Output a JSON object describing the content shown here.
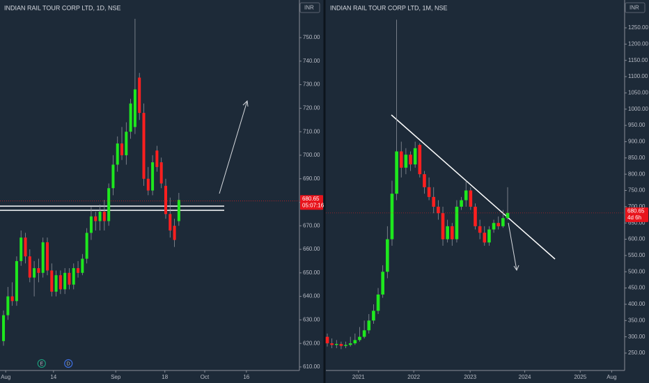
{
  "chart_data": [
    {
      "type": "candlestick",
      "title": "INDIAN RAIL TOUR CORP LTD, 1D, NSE",
      "currency": "INR",
      "last_price": 680.65,
      "countdown": "05:07:16",
      "up_color": "#1ee81e",
      "down_color": "#ff1f1f",
      "x": [
        0,
        1,
        2,
        3,
        4,
        5,
        6,
        7,
        8,
        9,
        10,
        11,
        12,
        13,
        14,
        15,
        16,
        17,
        18,
        19,
        20,
        21,
        22,
        23,
        24,
        25,
        26,
        27,
        28,
        29,
        30,
        31,
        32,
        33,
        34,
        35,
        36,
        37,
        38,
        39,
        40
      ],
      "open": [
        621,
        632,
        640,
        638,
        655,
        665,
        657,
        648,
        652,
        650,
        663,
        651,
        642,
        649,
        643,
        650,
        645,
        652,
        650,
        656,
        667,
        674,
        672,
        676,
        672,
        686,
        696,
        705,
        700,
        710,
        712,
        733,
        718,
        690,
        685,
        702,
        697,
        687,
        675,
        670,
        672
      ],
      "high": [
        634,
        644,
        646,
        657,
        668,
        667,
        660,
        655,
        656,
        665,
        665,
        654,
        651,
        651,
        652,
        652,
        654,
        655,
        658,
        669,
        678,
        676,
        679,
        681,
        688,
        700,
        708,
        712,
        714,
        724,
        758,
        735,
        722,
        695,
        700,
        704,
        699,
        690,
        682,
        673,
        684
      ],
      "low": [
        619,
        630,
        636,
        636,
        653,
        654,
        646,
        640,
        646,
        648,
        649,
        640,
        640,
        641,
        641,
        643,
        643,
        648,
        649,
        654,
        664,
        668,
        668,
        668,
        670,
        683,
        693,
        698,
        696,
        707,
        709,
        715,
        687,
        683,
        683,
        693,
        686,
        673,
        665,
        661,
        670
      ],
      "close": [
        632,
        640,
        638,
        655,
        665,
        657,
        648,
        652,
        650,
        663,
        651,
        642,
        649,
        643,
        650,
        645,
        652,
        650,
        656,
        667,
        674,
        672,
        676,
        672,
        686,
        696,
        705,
        700,
        710,
        722,
        728,
        718,
        690,
        685,
        697,
        695,
        688,
        675,
        668,
        664,
        681
      ],
      "events": [
        {
          "x": 8.7,
          "label": "E"
        },
        {
          "x": 14.8,
          "label": "D"
        }
      ],
      "xlim": [
        -0.8,
        67.5
      ],
      "xticks": [
        {
          "value": 0.5,
          "label": "Aug"
        },
        {
          "value": 11.4,
          "label": "14"
        },
        {
          "value": 25.6,
          "label": "Sep"
        },
        {
          "value": 36.8,
          "label": "18"
        },
        {
          "value": 45.9,
          "label": "Oct"
        },
        {
          "value": 55.4,
          "label": "16"
        }
      ],
      "ylim": [
        608.5,
        766
      ],
      "yticks": [
        {
          "value": 610,
          "label": "610.00"
        },
        {
          "value": 620,
          "label": "620.00"
        },
        {
          "value": 630,
          "label": "630.00"
        },
        {
          "value": 640,
          "label": "640.00"
        },
        {
          "value": 650,
          "label": "650.00"
        },
        {
          "value": 660,
          "label": "660.00"
        },
        {
          "value": 670,
          "label": "670.00"
        },
        {
          "value": 680,
          "label": "680.00"
        },
        {
          "value": 690,
          "label": "690.00"
        },
        {
          "value": 700,
          "label": "700.00"
        },
        {
          "value": 710,
          "label": "710.00"
        },
        {
          "value": 720,
          "label": "720.00"
        },
        {
          "value": 730,
          "label": "730.00"
        },
        {
          "value": 740,
          "label": "740.00"
        },
        {
          "value": 750,
          "label": "750.00"
        }
      ]
    },
    {
      "type": "candlestick",
      "title": "INDIAN RAIL TOUR CORP LTD, 1M, NSE",
      "currency": "INR",
      "last_price": 680.65,
      "countdown": "4d 6h",
      "up_color": "#1ee81e",
      "down_color": "#ff1f1f",
      "x": [
        0,
        1,
        2,
        3,
        4,
        5,
        6,
        7,
        8,
        9,
        10,
        11,
        12,
        13,
        14,
        15,
        16,
        17,
        18,
        19,
        20,
        21,
        22,
        23,
        24,
        25,
        26,
        27,
        28,
        29,
        30,
        31,
        32,
        33,
        34,
        35,
        36,
        37,
        38,
        39
      ],
      "open": [
        300,
        280,
        275,
        278,
        272,
        275,
        280,
        290,
        300,
        320,
        350,
        380,
        430,
        500,
        600,
        740,
        870,
        820,
        860,
        830,
        890,
        800,
        760,
        730,
        700,
        680,
        600,
        640,
        600,
        700,
        720,
        750,
        700,
        640,
        620,
        590,
        630,
        650,
        640,
        665
      ],
      "high": [
        310,
        295,
        290,
        285,
        285,
        300,
        310,
        330,
        350,
        370,
        400,
        450,
        520,
        640,
        780,
        1275,
        900,
        880,
        870,
        900,
        895,
        810,
        790,
        760,
        720,
        700,
        660,
        650,
        720,
        730,
        780,
        760,
        710,
        660,
        640,
        640,
        660,
        670,
        690,
        760
      ],
      "low": [
        270,
        265,
        265,
        262,
        265,
        270,
        275,
        285,
        295,
        310,
        340,
        370,
        420,
        480,
        580,
        720,
        790,
        800,
        810,
        820,
        790,
        740,
        720,
        680,
        660,
        580,
        590,
        580,
        590,
        690,
        700,
        690,
        630,
        600,
        580,
        580,
        620,
        630,
        635,
        660
      ],
      "close": [
        280,
        275,
        278,
        272,
        275,
        280,
        290,
        300,
        320,
        350,
        380,
        430,
        500,
        600,
        740,
        870,
        820,
        860,
        830,
        880,
        800,
        760,
        730,
        700,
        680,
        600,
        640,
        600,
        700,
        720,
        750,
        700,
        640,
        620,
        590,
        630,
        650,
        640,
        665,
        681
      ],
      "xlim": [
        -0.3,
        64.3
      ],
      "xticks": [
        {
          "value": 6.75,
          "label": "2021"
        },
        {
          "value": 18.7,
          "label": "2022"
        },
        {
          "value": 30.9,
          "label": "2023"
        },
        {
          "value": 42.7,
          "label": "2024"
        },
        {
          "value": 54.7,
          "label": "2025"
        },
        {
          "value": 61.5,
          "label": "Aug"
        }
      ],
      "ylim": [
        196.5,
        1335.6
      ],
      "yticks": [
        {
          "value": 250,
          "label": "250.00"
        },
        {
          "value": 300,
          "label": "300.00"
        },
        {
          "value": 350,
          "label": "350.00"
        },
        {
          "value": 400,
          "label": "400.00"
        },
        {
          "value": 450,
          "label": "450.00"
        },
        {
          "value": 500,
          "label": "500.00"
        },
        {
          "value": 550,
          "label": "550.00"
        },
        {
          "value": 600,
          "label": "600.00"
        },
        {
          "value": 650,
          "label": "650.00"
        },
        {
          "value": 700,
          "label": "700.00"
        },
        {
          "value": 750,
          "label": "750.00"
        },
        {
          "value": 800,
          "label": "800.00"
        },
        {
          "value": 850,
          "label": "850.00"
        },
        {
          "value": 900,
          "label": "900.00"
        },
        {
          "value": 950,
          "label": "950.00"
        },
        {
          "value": 1000,
          "label": "1000.00"
        },
        {
          "value": 1050,
          "label": "1050.00"
        },
        {
          "value": 1100,
          "label": "1100.00"
        },
        {
          "value": 1150,
          "label": "1150.00"
        },
        {
          "value": 1200,
          "label": "1200.00"
        },
        {
          "value": 1250,
          "label": "1250.00"
        }
      ]
    }
  ]
}
